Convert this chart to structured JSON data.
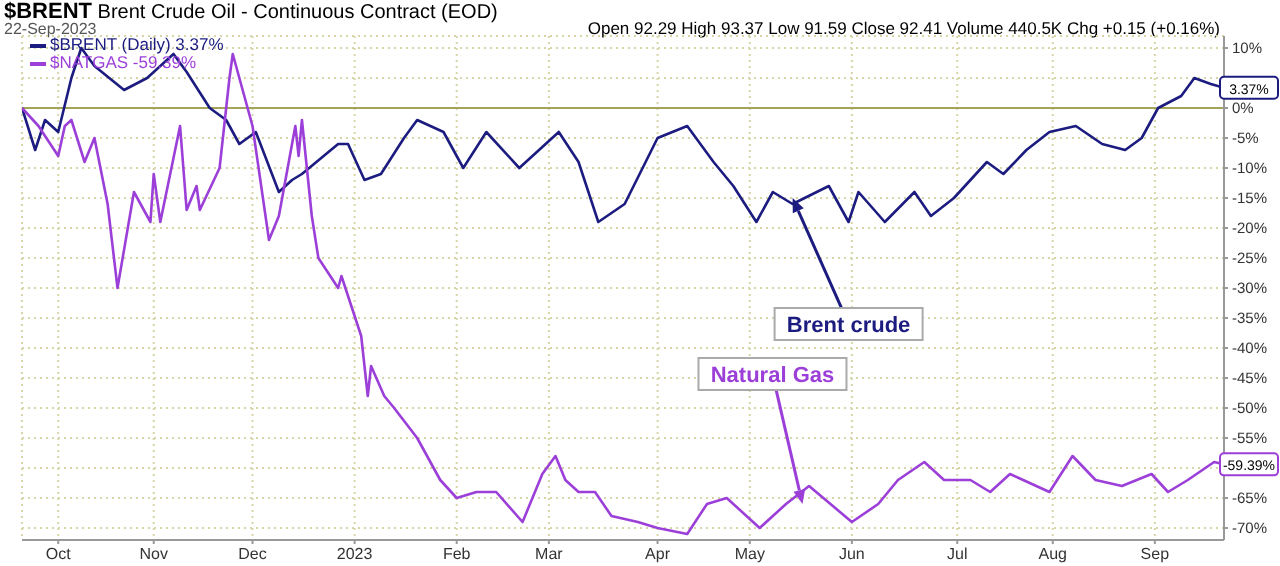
{
  "chart_data": {
    "type": "line",
    "title": "$BRENT Brent Crude Oil - Continuous Contract (EOD)",
    "subtitle": "22-Sep-2023",
    "annotations": [
      "Open 92.29 High 93.37 Low 91.59 Close 92.41 Volume 440.5K Chg +0.15 (+0.16%)",
      {
        "text": "Brent crude",
        "x": "2023-05-14",
        "y": -15
      },
      {
        "text": "Natural Gas",
        "x": "2023-05-17",
        "y": -66
      },
      {
        "text": "3.37%",
        "x": "2023-09-22",
        "y": 3.37
      },
      {
        "text": "-59.39%",
        "x": "2023-09-22",
        "y": -59.39
      }
    ],
    "series": [
      {
        "name": "$BRENT (Daily) 3.37%",
        "color": "#1c1c80",
        "x": [
          "2022-09-22",
          "2022-09-26",
          "2022-09-29",
          "2022-10-03",
          "2022-10-07",
          "2022-10-10",
          "2022-10-14",
          "2022-10-23",
          "2022-10-30",
          "2022-11-07",
          "2022-11-11",
          "2022-11-18",
          "2022-11-23",
          "2022-11-27",
          "2022-12-02",
          "2022-12-09",
          "2022-12-13",
          "2022-12-16",
          "2022-12-27",
          "2022-12-30",
          "2023-01-04",
          "2023-01-09",
          "2023-01-16",
          "2023-01-20",
          "2023-01-28",
          "2023-02-03",
          "2023-02-10",
          "2023-02-20",
          "2023-03-04",
          "2023-03-10",
          "2023-03-16",
          "2023-03-24",
          "2023-04-03",
          "2023-04-12",
          "2023-04-20",
          "2023-04-26",
          "2023-05-03",
          "2023-05-08",
          "2023-05-14",
          "2023-05-25",
          "2023-05-31",
          "2023-06-03",
          "2023-06-11",
          "2023-06-20",
          "2023-06-25",
          "2023-07-02",
          "2023-07-12",
          "2023-07-17",
          "2023-07-24",
          "2023-07-31",
          "2023-08-08",
          "2023-08-16",
          "2023-08-23",
          "2023-08-28",
          "2023-09-02",
          "2023-09-09",
          "2023-09-13",
          "2023-09-18",
          "2023-09-22"
        ],
        "values": [
          0,
          -7,
          -2,
          -4,
          5,
          10,
          7,
          3,
          5,
          9,
          6,
          0,
          -2,
          -6,
          -4,
          -14,
          -12,
          -11,
          -6,
          -6,
          -12,
          -11,
          -5,
          -2,
          -4,
          -10,
          -4,
          -10,
          -4,
          -9,
          -19,
          -16,
          -5,
          -3,
          -9,
          -13,
          -19,
          -14,
          -16,
          -13,
          -19,
          -14,
          -19,
          -14,
          -18,
          -15,
          -9,
          -11,
          -7,
          -4,
          -3,
          -6,
          -7,
          -5,
          0,
          2,
          5,
          4,
          3.37
        ]
      },
      {
        "name": "$NATGAS -59.39%",
        "color": "#9b3fd8",
        "x": [
          "2022-09-22",
          "2022-09-27",
          "2022-10-03",
          "2022-10-05",
          "2022-10-07",
          "2022-10-11",
          "2022-10-14",
          "2022-10-18",
          "2022-10-21",
          "2022-10-26",
          "2022-10-31",
          "2022-11-01",
          "2022-11-03",
          "2022-11-09",
          "2022-11-11",
          "2022-11-14",
          "2022-11-15",
          "2022-11-21",
          "2022-11-24",
          "2022-11-25",
          "2022-12-01",
          "2022-12-06",
          "2022-12-09",
          "2022-12-14",
          "2022-12-15",
          "2022-12-16",
          "2022-12-19",
          "2022-12-21",
          "2022-12-27",
          "2022-12-28",
          "2023-01-03",
          "2023-01-05",
          "2023-01-06",
          "2023-01-10",
          "2023-01-13",
          "2023-01-20",
          "2023-01-27",
          "2023-02-01",
          "2023-02-07",
          "2023-02-13",
          "2023-02-21",
          "2023-02-27",
          "2023-03-03",
          "2023-03-06",
          "2023-03-10",
          "2023-03-15",
          "2023-03-20",
          "2023-03-28",
          "2023-04-03",
          "2023-04-12",
          "2023-04-18",
          "2023-04-24",
          "2023-05-04",
          "2023-05-12",
          "2023-05-19",
          "2023-06-01",
          "2023-06-09",
          "2023-06-15",
          "2023-06-23",
          "2023-06-29",
          "2023-07-07",
          "2023-07-13",
          "2023-07-19",
          "2023-07-31",
          "2023-08-07",
          "2023-08-14",
          "2023-08-22",
          "2023-08-31",
          "2023-09-05",
          "2023-09-11",
          "2023-09-19",
          "2023-09-22"
        ],
        "values": [
          0,
          -3,
          -8,
          -3,
          -2,
          -9,
          -5,
          -16,
          -30,
          -14,
          -19,
          -11,
          -19,
          -3,
          -17,
          -13,
          -17,
          -10,
          5,
          9,
          -3,
          -22,
          -18,
          -3,
          -8,
          -2,
          -18,
          -25,
          -30,
          -28,
          -38,
          -48,
          -43,
          -48,
          -50,
          -55,
          -62,
          -65,
          -64,
          -64,
          -69,
          -61,
          -58,
          -62,
          -64,
          -64,
          -68,
          -69,
          -70,
          -71,
          -66,
          -65,
          -70,
          -66,
          -63,
          -69,
          -66,
          -62,
          -59,
          -62,
          -62,
          -64,
          -61,
          -64,
          -58,
          -62,
          -63,
          -61,
          -64,
          -62,
          -59,
          -59.39
        ]
      }
    ],
    "xlim": [
      "2022-09-22",
      "2023-09-22"
    ],
    "xticks": [
      {
        "value": "2022-10-03",
        "label": "Oct"
      },
      {
        "value": "2022-11-01",
        "label": "Nov"
      },
      {
        "value": "2022-12-01",
        "label": "Dec"
      },
      {
        "value": "2023-01-01",
        "label": "2023"
      },
      {
        "value": "2023-02-01",
        "label": "Feb"
      },
      {
        "value": "2023-03-01",
        "label": "Mar"
      },
      {
        "value": "2023-04-03",
        "label": "Apr"
      },
      {
        "value": "2023-05-01",
        "label": "May"
      },
      {
        "value": "2023-06-01",
        "label": "Jun"
      },
      {
        "value": "2023-07-03",
        "label": "Jul"
      },
      {
        "value": "2023-08-01",
        "label": "Aug"
      },
      {
        "value": "2023-09-01",
        "label": "Sep"
      }
    ],
    "ylim": [
      -72,
      12
    ],
    "yticks": [
      {
        "value": 10,
        "label": "10%"
      },
      {
        "value": 5,
        "label": null
      },
      {
        "value": 0,
        "label": "0%"
      },
      {
        "value": -5,
        "label": "-5%"
      },
      {
        "value": -10,
        "label": "-10%"
      },
      {
        "value": -15,
        "label": "-15%"
      },
      {
        "value": -20,
        "label": "-20%"
      },
      {
        "value": -25,
        "label": "-25%"
      },
      {
        "value": -30,
        "label": "-30%"
      },
      {
        "value": -35,
        "label": "-35%"
      },
      {
        "value": -40,
        "label": "-40%"
      },
      {
        "value": -45,
        "label": "-45%"
      },
      {
        "value": -50,
        "label": "-50%"
      },
      {
        "value": -55,
        "label": "-55%"
      },
      {
        "value": -60,
        "label": null
      },
      {
        "value": -65,
        "label": "-65%"
      },
      {
        "value": -70,
        "label": "-70%"
      }
    ],
    "ref_lines": [
      {
        "axis": "y",
        "value": 0,
        "color": "#a3a35a"
      }
    ],
    "grid": true,
    "legend": "top left",
    "marker": "none",
    "line_style": "solid"
  }
}
